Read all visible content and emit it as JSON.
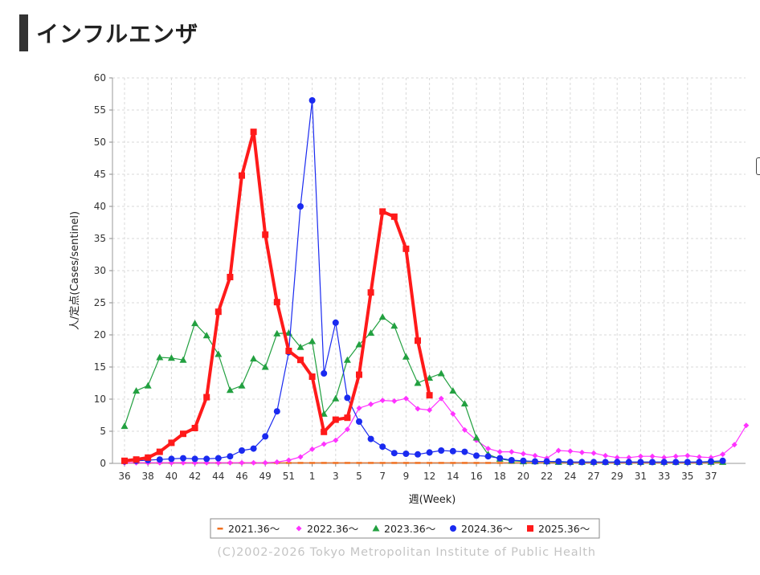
{
  "page": {
    "title": "インフルエンザ"
  },
  "chart_data": {
    "type": "line",
    "ylabel": "人/定点(Cases/sentinel)",
    "xlabel": "週(Week)",
    "ylim": [
      0,
      60
    ],
    "yticks": [
      0,
      5,
      10,
      15,
      20,
      25,
      30,
      35,
      40,
      45,
      50,
      55,
      60
    ],
    "xticks": [
      "36",
      "38",
      "40",
      "42",
      "44",
      "46",
      "49",
      "51",
      "1",
      "3",
      "5",
      "7",
      "9",
      "12",
      "14",
      "16",
      "18",
      "20",
      "22",
      "24",
      "27",
      "29",
      "31",
      "33",
      "35",
      "37"
    ],
    "grid": true,
    "legend_position": "bottom",
    "copyright": "(C)2002-2026 Tokyo Metropolitan Institute of Public Health",
    "series": [
      {
        "name": "2021.36～",
        "color": "#f07020",
        "marker": "dash",
        "values": [
          0.1,
          0.1,
          0.1,
          0.1,
          0.1,
          0.1,
          0.1,
          0.1,
          0.1,
          0.1,
          0.1,
          0.1,
          0.1,
          0.1,
          0.1,
          0.1,
          0.1,
          0.1,
          0.1,
          0.1,
          0.1,
          0.1,
          0.1,
          0.1,
          0.1,
          0.1,
          0.1,
          0.1,
          0.1,
          0.1,
          0.1,
          0.1,
          0.1,
          0.1,
          0.1,
          0.1,
          0.1,
          0.1,
          0.1,
          0.1,
          0.1,
          0.1,
          0.1,
          0.1,
          0.1,
          0.1,
          0.1,
          0.1,
          0.1,
          0.1,
          0.1,
          0.1
        ]
      },
      {
        "name": "2022.36～",
        "color": "#ff33ff",
        "marker": "diamond",
        "values": [
          0.1,
          0.1,
          0.1,
          0.1,
          0.1,
          0.1,
          0.1,
          0.1,
          0.1,
          0.1,
          0.1,
          0.1,
          0.1,
          0.2,
          0.5,
          1.0,
          2.2,
          3.0,
          3.6,
          5.3,
          8.6,
          9.2,
          9.8,
          9.7,
          10.1,
          8.5,
          8.3,
          10.1,
          7.7,
          5.2,
          3.6,
          2.3,
          1.8,
          1.8,
          1.5,
          1.2,
          0.8,
          2.0,
          1.9,
          1.7,
          1.6,
          1.2,
          0.9,
          0.9,
          1.1,
          1.1,
          0.9,
          1.1,
          1.2,
          1.0,
          0.9,
          1.4,
          2.9,
          5.9
        ]
      },
      {
        "name": "2023.36～",
        "color": "#22a040",
        "marker": "triangle",
        "values": [
          5.8,
          11.3,
          12.1,
          16.5,
          16.4,
          16.1,
          21.8,
          19.9,
          17.0,
          11.4,
          12.1,
          16.3,
          15.0,
          20.2,
          20.3,
          18.1,
          19.0,
          7.7,
          10.1,
          16.1,
          18.5,
          20.3,
          22.8,
          21.4,
          16.6,
          12.5,
          13.3,
          14.0,
          11.3,
          9.3,
          4.0,
          1.4,
          0.7,
          0.4,
          0.3,
          0.3,
          0.3,
          0.2,
          0.2,
          0.2,
          0.2,
          0.2,
          0.2,
          0.2,
          0.2,
          0.2,
          0.2,
          0.2,
          0.2,
          0.2,
          0.2,
          0.2
        ]
      },
      {
        "name": "2024.36～",
        "color": "#1a2af0",
        "marker": "circle",
        "values": [
          0.3,
          0.4,
          0.5,
          0.6,
          0.7,
          0.8,
          0.7,
          0.7,
          0.8,
          1.1,
          2.0,
          2.3,
          4.2,
          8.1,
          17.3,
          40.0,
          56.5,
          14.0,
          21.9,
          10.2,
          6.5,
          3.8,
          2.6,
          1.6,
          1.5,
          1.4,
          1.7,
          2.0,
          1.9,
          1.8,
          1.2,
          1.1,
          0.8,
          0.5,
          0.4,
          0.3,
          0.3,
          0.3,
          0.2,
          0.2,
          0.2,
          0.2,
          0.2,
          0.2,
          0.2,
          0.2,
          0.2,
          0.2,
          0.2,
          0.2,
          0.3,
          0.4
        ]
      },
      {
        "name": "2025.36～",
        "color": "#ff1a1a",
        "marker": "square",
        "values": [
          0.4,
          0.6,
          0.9,
          1.8,
          3.2,
          4.6,
          5.5,
          10.3,
          23.6,
          29.0,
          44.8,
          51.6,
          35.6,
          25.1,
          17.5,
          16.1,
          13.5,
          4.9,
          6.8,
          7.1,
          13.8,
          26.6,
          39.2,
          38.4,
          33.4,
          19.1,
          10.6
        ]
      }
    ]
  }
}
